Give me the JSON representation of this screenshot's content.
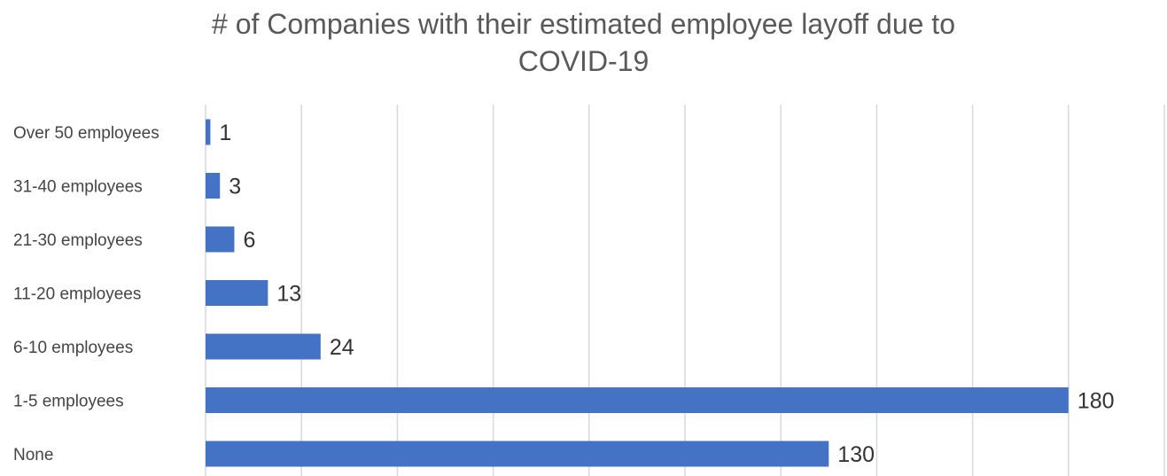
{
  "chart_data": {
    "type": "bar",
    "orientation": "horizontal",
    "title_line1": "# of Companies with their estimated employee layoff due to",
    "title_line2": "COVID-19",
    "categories": [
      "Over 50 employees",
      "31-40 employees",
      "21-30 employees",
      "11-20 employees",
      "6-10 employees",
      "1-5 employees",
      "None"
    ],
    "values": [
      1,
      3,
      6,
      13,
      24,
      180,
      130
    ],
    "data_labels": [
      "1",
      "3",
      "6",
      "13",
      "24",
      "180",
      "130"
    ],
    "xlim": [
      0,
      200
    ],
    "grid": true,
    "legend": "none",
    "bar_color": "#4472c4",
    "grid_color": "#d9d9d9"
  }
}
